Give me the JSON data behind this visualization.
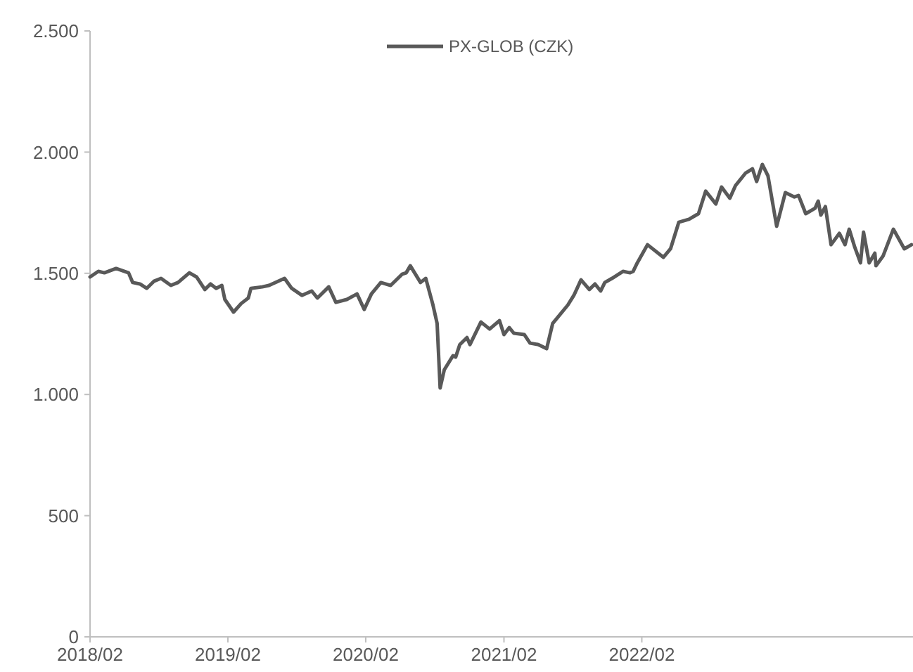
{
  "chart_data": {
    "type": "line",
    "legend": "top",
    "line_style": "solid",
    "xlim": [
      "2018-02-01",
      "2024-01-20"
    ],
    "xticks": [
      {
        "value": "2018-02-01",
        "label": "2018/02"
      },
      {
        "value": "2019-02-01",
        "label": "2019/02"
      },
      {
        "value": "2020-02-01",
        "label": "2020/02"
      },
      {
        "value": "2021-02-01",
        "label": "2021/02"
      },
      {
        "value": "2022-02-01",
        "label": "2022/02"
      }
    ],
    "ylim": [
      0,
      2500
    ],
    "yticks": [
      0,
      {
        "value": 500,
        "label": "500"
      },
      {
        "value": 1000,
        "label": "1.000"
      },
      {
        "value": 1500,
        "label": "1.500"
      },
      {
        "value": 2000,
        "label": "2.000"
      },
      {
        "value": 2500,
        "label": "2.500"
      }
    ],
    "x": [
      "2018-02-01",
      "2018-02-23",
      "2018-03-11",
      "2018-04-11",
      "2018-05-14",
      "2018-05-25",
      "2018-06-13",
      "2018-07-01",
      "2018-07-20",
      "2018-08-08",
      "2018-09-03",
      "2018-09-22",
      "2018-10-22",
      "2018-11-10",
      "2018-12-02",
      "2018-12-17",
      "2019-01-01",
      "2019-01-16",
      "2019-01-24",
      "2019-02-16",
      "2019-03-08",
      "2019-03-27",
      "2019-04-03",
      "2019-05-03",
      "2019-05-21",
      "2019-07-01",
      "2019-07-20",
      "2019-08-16",
      "2019-09-11",
      "2019-09-26",
      "2019-10-26",
      "2019-11-14",
      "2019-12-13",
      "2020-01-09",
      "2020-01-28",
      "2020-02-16",
      "2020-03-12",
      "2020-04-07",
      "2020-05-07",
      "2020-05-18",
      "2020-05-29",
      "2020-06-25",
      "2020-07-09",
      "2020-07-28",
      "2020-08-08",
      "2020-08-16",
      "2020-08-27",
      "2020-09-19",
      "2020-09-26",
      "2020-10-07",
      "2020-10-26",
      "2020-11-03",
      "2020-12-02",
      "2020-12-25",
      "2021-01-20",
      "2021-02-01",
      "2021-02-15",
      "2021-02-27",
      "2021-03-27",
      "2021-04-11",
      "2021-05-03",
      "2021-05-25",
      "2021-06-10",
      "2021-07-20",
      "2021-08-05",
      "2021-08-24",
      "2021-09-15",
      "2021-09-30",
      "2021-10-15",
      "2021-10-26",
      "2021-11-14",
      "2021-12-13",
      "2022-01-01",
      "2022-01-09",
      "2022-01-20",
      "2022-02-16",
      "2022-03-30",
      "2022-04-18",
      "2022-05-10",
      "2022-06-06",
      "2022-07-01",
      "2022-07-20",
      "2022-08-16",
      "2022-08-31",
      "2022-09-22",
      "2022-10-07",
      "2022-11-03",
      "2022-11-21",
      "2022-12-02",
      "2022-12-17",
      "2023-01-01",
      "2023-01-24",
      "2023-02-16",
      "2023-03-12",
      "2023-03-23",
      "2023-04-11",
      "2023-05-06",
      "2023-05-14",
      "2023-05-21",
      "2023-06-02",
      "2023-06-17",
      "2023-07-09",
      "2023-07-24",
      "2023-08-04",
      "2023-08-19",
      "2023-09-03",
      "2023-09-11",
      "2023-09-26",
      "2023-10-11",
      "2023-10-14",
      "2023-11-02",
      "2023-11-29",
      "2023-12-28",
      "2024-01-16"
    ],
    "series": [
      {
        "name": "PX-GLOB (CZK)",
        "color": "#595959",
        "values": [
          1485,
          1508,
          1502,
          1520,
          1502,
          1462,
          1456,
          1438,
          1467,
          1479,
          1450,
          1462,
          1502,
          1485,
          1433,
          1456,
          1438,
          1450,
          1392,
          1340,
          1375,
          1398,
          1438,
          1444,
          1450,
          1479,
          1438,
          1409,
          1427,
          1398,
          1444,
          1380,
          1392,
          1415,
          1351,
          1415,
          1462,
          1450,
          1496,
          1502,
          1531,
          1462,
          1479,
          1369,
          1293,
          1027,
          1102,
          1160,
          1154,
          1206,
          1235,
          1206,
          1299,
          1270,
          1305,
          1247,
          1276,
          1253,
          1247,
          1212,
          1206,
          1189,
          1293,
          1369,
          1409,
          1473,
          1433,
          1456,
          1427,
          1462,
          1479,
          1508,
          1502,
          1508,
          1543,
          1618,
          1566,
          1601,
          1711,
          1723,
          1746,
          1839,
          1786,
          1856,
          1810,
          1862,
          1914,
          1931,
          1879,
          1949,
          1902,
          1694,
          1833,
          1815,
          1821,
          1746,
          1769,
          1798,
          1740,
          1775,
          1618,
          1665,
          1618,
          1682,
          1607,
          1543,
          1670,
          1543,
          1583,
          1531,
          1572,
          1682,
          1601,
          1618
        ]
      }
    ]
  }
}
